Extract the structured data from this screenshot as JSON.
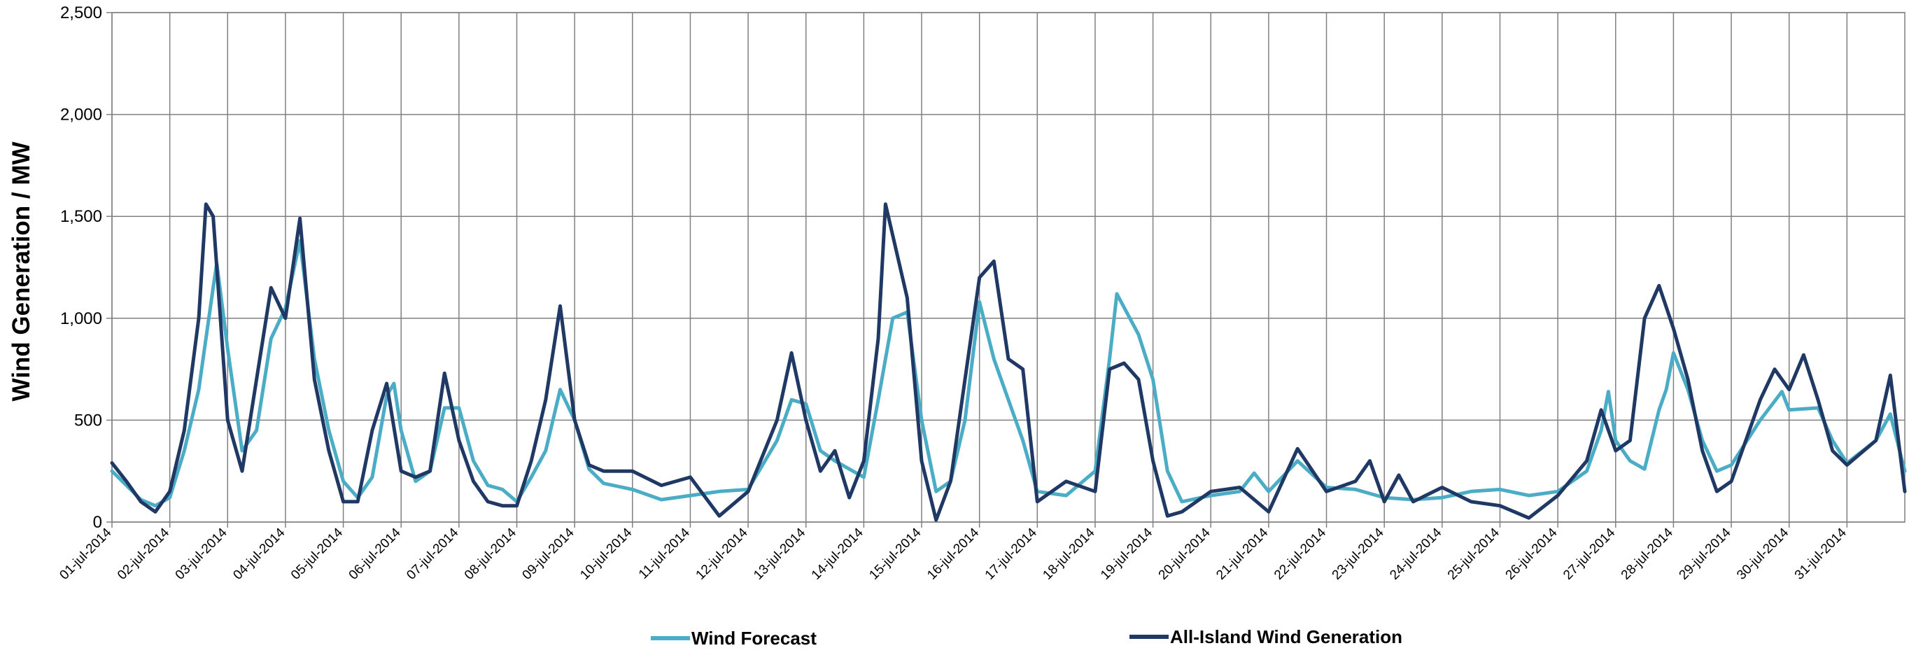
{
  "chart_data": {
    "type": "line",
    "title": "",
    "xlabel": "",
    "ylabel": "Wind Generation / MW",
    "ylim": [
      0,
      2500
    ],
    "y_ticks": [
      "0",
      "500",
      "1,000",
      "1,500",
      "2,000",
      "2,500"
    ],
    "x_start": "2014-07-01",
    "x_ticks": [
      "01-jul-2014",
      "02-jul-2014",
      "03-jul-2014",
      "04-jul-2014",
      "05-jul-2014",
      "06-jul-2014",
      "07-jul-2014",
      "08-jul-2014",
      "09-jul-2014",
      "10-jul-2014",
      "11-jul-2014",
      "12-jul-2014",
      "13-jul-2014",
      "14-jul-2014",
      "15-jul-2014",
      "16-jul-2014",
      "17-jul-2014",
      "18-jul-2014",
      "19-jul-2014",
      "20-jul-2014",
      "21-jul-2014",
      "22-jul-2014",
      "23-jul-2014",
      "24-jul-2014",
      "25-jul-2014",
      "26-jul-2014",
      "27-jul-2014",
      "28-jul-2014",
      "29-jul-2014",
      "30-jul-2014",
      "31-jul-2014"
    ],
    "grid": true,
    "legend_position": "bottom",
    "series": [
      {
        "name": "Wind Forecast",
        "color": "#4bacc6",
        "points": [
          [
            "01-jul-2014 00:00",
            250
          ],
          [
            "01-jul-2014 06:00",
            180
          ],
          [
            "01-jul-2014 12:00",
            110
          ],
          [
            "01-jul-2014 18:00",
            80
          ],
          [
            "02-jul-2014 00:00",
            120
          ],
          [
            "02-jul-2014 06:00",
            350
          ],
          [
            "02-jul-2014 12:00",
            650
          ],
          [
            "02-jul-2014 18:00",
            1150
          ],
          [
            "02-jul-2014 19:30",
            1270
          ],
          [
            "03-jul-2014 00:00",
            850
          ],
          [
            "03-jul-2014 06:00",
            350
          ],
          [
            "03-jul-2014 12:00",
            450
          ],
          [
            "03-jul-2014 18:00",
            900
          ],
          [
            "04-jul-2014 00:00",
            1050
          ],
          [
            "04-jul-2014 06:00",
            1380
          ],
          [
            "04-jul-2014 12:00",
            800
          ],
          [
            "04-jul-2014 18:00",
            450
          ],
          [
            "05-jul-2014 00:00",
            200
          ],
          [
            "05-jul-2014 06:00",
            120
          ],
          [
            "05-jul-2014 12:00",
            220
          ],
          [
            "05-jul-2014 18:00",
            620
          ],
          [
            "05-jul-2014 21:00",
            680
          ],
          [
            "06-jul-2014 00:00",
            450
          ],
          [
            "06-jul-2014 06:00",
            200
          ],
          [
            "06-jul-2014 12:00",
            250
          ],
          [
            "06-jul-2014 18:00",
            560
          ],
          [
            "07-jul-2014 00:00",
            560
          ],
          [
            "07-jul-2014 06:00",
            300
          ],
          [
            "07-jul-2014 12:00",
            180
          ],
          [
            "07-jul-2014 18:00",
            160
          ],
          [
            "08-jul-2014 00:00",
            100
          ],
          [
            "08-jul-2014 06:00",
            220
          ],
          [
            "08-jul-2014 12:00",
            350
          ],
          [
            "08-jul-2014 18:00",
            650
          ],
          [
            "09-jul-2014 00:00",
            500
          ],
          [
            "09-jul-2014 06:00",
            260
          ],
          [
            "09-jul-2014 12:00",
            190
          ],
          [
            "10-jul-2014 00:00",
            160
          ],
          [
            "10-jul-2014 12:00",
            110
          ],
          [
            "11-jul-2014 00:00",
            130
          ],
          [
            "11-jul-2014 12:00",
            150
          ],
          [
            "12-jul-2014 00:00",
            160
          ],
          [
            "12-jul-2014 12:00",
            400
          ],
          [
            "12-jul-2014 18:00",
            600
          ],
          [
            "13-jul-2014 00:00",
            580
          ],
          [
            "13-jul-2014 06:00",
            350
          ],
          [
            "13-jul-2014 12:00",
            300
          ],
          [
            "13-jul-2014 18:00",
            260
          ],
          [
            "14-jul-2014 00:00",
            220
          ],
          [
            "14-jul-2014 06:00",
            600
          ],
          [
            "14-jul-2014 12:00",
            1000
          ],
          [
            "14-jul-2014 18:00",
            1030
          ],
          [
            "15-jul-2014 00:00",
            500
          ],
          [
            "15-jul-2014 06:00",
            150
          ],
          [
            "15-jul-2014 12:00",
            200
          ],
          [
            "15-jul-2014 18:00",
            500
          ],
          [
            "16-jul-2014 00:00",
            1080
          ],
          [
            "16-jul-2014 06:00",
            800
          ],
          [
            "16-jul-2014 12:00",
            600
          ],
          [
            "16-jul-2014 18:00",
            400
          ],
          [
            "17-jul-2014 00:00",
            150
          ],
          [
            "17-jul-2014 12:00",
            130
          ],
          [
            "18-jul-2014 00:00",
            250
          ],
          [
            "18-jul-2014 06:00",
            800
          ],
          [
            "18-jul-2014 09:00",
            1120
          ],
          [
            "18-jul-2014 18:00",
            920
          ],
          [
            "19-jul-2014 00:00",
            700
          ],
          [
            "19-jul-2014 06:00",
            250
          ],
          [
            "19-jul-2014 12:00",
            100
          ],
          [
            "20-jul-2014 00:00",
            130
          ],
          [
            "20-jul-2014 12:00",
            150
          ],
          [
            "20-jul-2014 18:00",
            240
          ],
          [
            "21-jul-2014 00:00",
            150
          ],
          [
            "21-jul-2014 12:00",
            300
          ],
          [
            "22-jul-2014 00:00",
            170
          ],
          [
            "22-jul-2014 12:00",
            160
          ],
          [
            "23-jul-2014 00:00",
            120
          ],
          [
            "23-jul-2014 12:00",
            110
          ],
          [
            "24-jul-2014 00:00",
            120
          ],
          [
            "24-jul-2014 12:00",
            150
          ],
          [
            "25-jul-2014 00:00",
            160
          ],
          [
            "25-jul-2014 12:00",
            130
          ],
          [
            "26-jul-2014 00:00",
            150
          ],
          [
            "26-jul-2014 12:00",
            250
          ],
          [
            "26-jul-2014 18:00",
            450
          ],
          [
            "26-jul-2014 21:00",
            640
          ],
          [
            "27-jul-2014 00:00",
            400
          ],
          [
            "27-jul-2014 06:00",
            300
          ],
          [
            "27-jul-2014 12:00",
            260
          ],
          [
            "27-jul-2014 18:00",
            550
          ],
          [
            "27-jul-2014 21:00",
            650
          ],
          [
            "28-jul-2014 00:00",
            830
          ],
          [
            "28-jul-2014 06:00",
            650
          ],
          [
            "28-jul-2014 12:00",
            400
          ],
          [
            "28-jul-2014 18:00",
            250
          ],
          [
            "29-jul-2014 00:00",
            280
          ],
          [
            "29-jul-2014 12:00",
            500
          ],
          [
            "29-jul-2014 21:00",
            640
          ],
          [
            "30-jul-2014 00:00",
            550
          ],
          [
            "30-jul-2014 12:00",
            560
          ],
          [
            "30-jul-2014 18:00",
            400
          ],
          [
            "31-jul-2014 00:00",
            290
          ],
          [
            "31-jul-2014 12:00",
            400
          ],
          [
            "31-jul-2014 18:00",
            530
          ],
          [
            "01-aug-2014 00:00",
            250
          ]
        ]
      },
      {
        "name": "All-Island Wind Generation",
        "color": "#1f3864",
        "points": [
          [
            "01-jul-2014 00:00",
            290
          ],
          [
            "01-jul-2014 06:00",
            200
          ],
          [
            "01-jul-2014 12:00",
            100
          ],
          [
            "01-jul-2014 18:00",
            50
          ],
          [
            "02-jul-2014 00:00",
            150
          ],
          [
            "02-jul-2014 06:00",
            450
          ],
          [
            "02-jul-2014 12:00",
            1000
          ],
          [
            "02-jul-2014 15:00",
            1560
          ],
          [
            "02-jul-2014 18:00",
            1500
          ],
          [
            "03-jul-2014 00:00",
            500
          ],
          [
            "03-jul-2014 06:00",
            250
          ],
          [
            "03-jul-2014 12:00",
            700
          ],
          [
            "03-jul-2014 18:00",
            1150
          ],
          [
            "04-jul-2014 00:00",
            1000
          ],
          [
            "04-jul-2014 06:00",
            1490
          ],
          [
            "04-jul-2014 12:00",
            700
          ],
          [
            "04-jul-2014 18:00",
            350
          ],
          [
            "05-jul-2014 00:00",
            100
          ],
          [
            "05-jul-2014 06:00",
            100
          ],
          [
            "05-jul-2014 12:00",
            450
          ],
          [
            "05-jul-2014 18:00",
            680
          ],
          [
            "06-jul-2014 00:00",
            250
          ],
          [
            "06-jul-2014 06:00",
            220
          ],
          [
            "06-jul-2014 12:00",
            250
          ],
          [
            "06-jul-2014 18:00",
            730
          ],
          [
            "07-jul-2014 00:00",
            400
          ],
          [
            "07-jul-2014 06:00",
            200
          ],
          [
            "07-jul-2014 12:00",
            100
          ],
          [
            "07-jul-2014 18:00",
            80
          ],
          [
            "08-jul-2014 00:00",
            80
          ],
          [
            "08-jul-2014 06:00",
            300
          ],
          [
            "08-jul-2014 12:00",
            600
          ],
          [
            "08-jul-2014 18:00",
            1060
          ],
          [
            "09-jul-2014 00:00",
            500
          ],
          [
            "09-jul-2014 06:00",
            280
          ],
          [
            "09-jul-2014 12:00",
            250
          ],
          [
            "10-jul-2014 00:00",
            250
          ],
          [
            "10-jul-2014 12:00",
            180
          ],
          [
            "11-jul-2014 00:00",
            220
          ],
          [
            "11-jul-2014 12:00",
            30
          ],
          [
            "12-jul-2014 00:00",
            150
          ],
          [
            "12-jul-2014 12:00",
            500
          ],
          [
            "12-jul-2014 18:00",
            830
          ],
          [
            "13-jul-2014 00:00",
            500
          ],
          [
            "13-jul-2014 06:00",
            250
          ],
          [
            "13-jul-2014 12:00",
            350
          ],
          [
            "13-jul-2014 18:00",
            120
          ],
          [
            "14-jul-2014 00:00",
            300
          ],
          [
            "14-jul-2014 06:00",
            900
          ],
          [
            "14-jul-2014 09:00",
            1560
          ],
          [
            "14-jul-2014 18:00",
            1100
          ],
          [
            "15-jul-2014 00:00",
            300
          ],
          [
            "15-jul-2014 06:00",
            10
          ],
          [
            "15-jul-2014 12:00",
            200
          ],
          [
            "15-jul-2014 18:00",
            700
          ],
          [
            "16-jul-2014 00:00",
            1200
          ],
          [
            "16-jul-2014 06:00",
            1280
          ],
          [
            "16-jul-2014 12:00",
            800
          ],
          [
            "16-jul-2014 18:00",
            750
          ],
          [
            "17-jul-2014 00:00",
            100
          ],
          [
            "17-jul-2014 12:00",
            200
          ],
          [
            "18-jul-2014 00:00",
            150
          ],
          [
            "18-jul-2014 06:00",
            750
          ],
          [
            "18-jul-2014 12:00",
            780
          ],
          [
            "18-jul-2014 18:00",
            700
          ],
          [
            "19-jul-2014 00:00",
            300
          ],
          [
            "19-jul-2014 06:00",
            30
          ],
          [
            "19-jul-2014 12:00",
            50
          ],
          [
            "20-jul-2014 00:00",
            150
          ],
          [
            "20-jul-2014 12:00",
            170
          ],
          [
            "21-jul-2014 00:00",
            50
          ],
          [
            "21-jul-2014 12:00",
            360
          ],
          [
            "22-jul-2014 00:00",
            150
          ],
          [
            "22-jul-2014 12:00",
            200
          ],
          [
            "22-jul-2014 18:00",
            300
          ],
          [
            "23-jul-2014 00:00",
            100
          ],
          [
            "23-jul-2014 06:00",
            230
          ],
          [
            "23-jul-2014 12:00",
            100
          ],
          [
            "24-jul-2014 00:00",
            170
          ],
          [
            "24-jul-2014 12:00",
            100
          ],
          [
            "25-jul-2014 00:00",
            80
          ],
          [
            "25-jul-2014 12:00",
            20
          ],
          [
            "26-jul-2014 00:00",
            130
          ],
          [
            "26-jul-2014 12:00",
            300
          ],
          [
            "26-jul-2014 18:00",
            550
          ],
          [
            "27-jul-2014 00:00",
            350
          ],
          [
            "27-jul-2014 06:00",
            400
          ],
          [
            "27-jul-2014 12:00",
            1000
          ],
          [
            "27-jul-2014 18:00",
            1160
          ],
          [
            "28-jul-2014 00:00",
            950
          ],
          [
            "28-jul-2014 06:00",
            700
          ],
          [
            "28-jul-2014 12:00",
            350
          ],
          [
            "28-jul-2014 18:00",
            150
          ],
          [
            "29-jul-2014 00:00",
            200
          ],
          [
            "29-jul-2014 12:00",
            600
          ],
          [
            "29-jul-2014 18:00",
            750
          ],
          [
            "30-jul-2014 00:00",
            650
          ],
          [
            "30-jul-2014 06:00",
            820
          ],
          [
            "30-jul-2014 12:00",
            600
          ],
          [
            "30-jul-2014 18:00",
            350
          ],
          [
            "31-jul-2014 00:00",
            280
          ],
          [
            "31-jul-2014 12:00",
            400
          ],
          [
            "31-jul-2014 18:00",
            720
          ],
          [
            "01-aug-2014 00:00",
            150
          ]
        ]
      }
    ]
  }
}
